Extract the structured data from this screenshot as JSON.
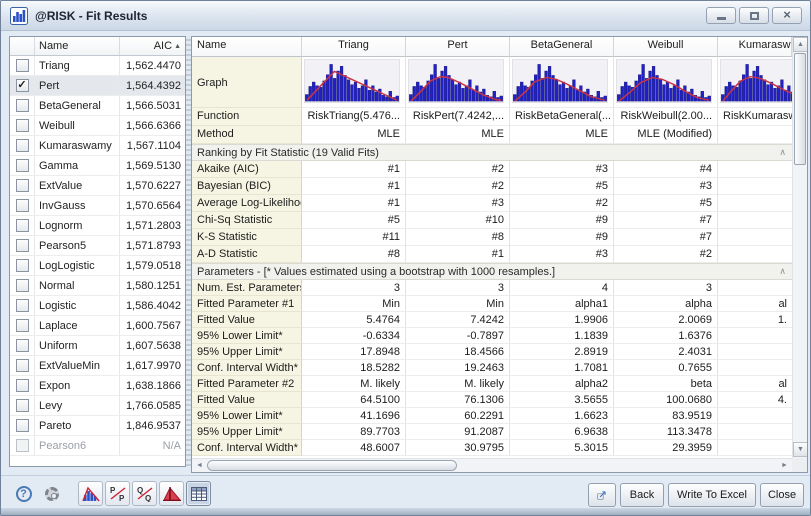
{
  "window": {
    "title": "@RISK - Fit Results"
  },
  "left_panel": {
    "headers": {
      "name": "Name",
      "aic": "AIC",
      "sort_arrow": "▲"
    },
    "rows": [
      {
        "name": "Triang",
        "aic": "1,562.4470",
        "checked": false,
        "selected": false,
        "disabled": false
      },
      {
        "name": "Pert",
        "aic": "1,564.4392",
        "checked": true,
        "selected": true,
        "disabled": false
      },
      {
        "name": "BetaGeneral",
        "aic": "1,566.5031",
        "checked": false,
        "selected": false,
        "disabled": false
      },
      {
        "name": "Weibull",
        "aic": "1,566.6366",
        "checked": false,
        "selected": false,
        "disabled": false
      },
      {
        "name": "Kumaraswamy",
        "aic": "1,567.1104",
        "checked": false,
        "selected": false,
        "disabled": false
      },
      {
        "name": "Gamma",
        "aic": "1,569.5130",
        "checked": false,
        "selected": false,
        "disabled": false
      },
      {
        "name": "ExtValue",
        "aic": "1,570.6227",
        "checked": false,
        "selected": false,
        "disabled": false
      },
      {
        "name": "InvGauss",
        "aic": "1,570.6564",
        "checked": false,
        "selected": false,
        "disabled": false
      },
      {
        "name": "Lognorm",
        "aic": "1,571.2803",
        "checked": false,
        "selected": false,
        "disabled": false
      },
      {
        "name": "Pearson5",
        "aic": "1,571.8793",
        "checked": false,
        "selected": false,
        "disabled": false
      },
      {
        "name": "LogLogistic",
        "aic": "1,579.0518",
        "checked": false,
        "selected": false,
        "disabled": false
      },
      {
        "name": "Normal",
        "aic": "1,580.1251",
        "checked": false,
        "selected": false,
        "disabled": false
      },
      {
        "name": "Logistic",
        "aic": "1,586.4042",
        "checked": false,
        "selected": false,
        "disabled": false
      },
      {
        "name": "Laplace",
        "aic": "1,600.7567",
        "checked": false,
        "selected": false,
        "disabled": false
      },
      {
        "name": "Uniform",
        "aic": "1,607.5638",
        "checked": false,
        "selected": false,
        "disabled": false
      },
      {
        "name": "ExtValueMin",
        "aic": "1,617.9970",
        "checked": false,
        "selected": false,
        "disabled": false
      },
      {
        "name": "Expon",
        "aic": "1,638.1866",
        "checked": false,
        "selected": false,
        "disabled": false
      },
      {
        "name": "Levy",
        "aic": "1,766.0585",
        "checked": false,
        "selected": false,
        "disabled": false
      },
      {
        "name": "Pareto",
        "aic": "1,846.9537",
        "checked": false,
        "selected": false,
        "disabled": false
      },
      {
        "name": "Pearson6",
        "aic": "N/A",
        "checked": false,
        "selected": false,
        "disabled": true
      }
    ]
  },
  "right_panel": {
    "name_header": "Name",
    "columns": [
      "Triang",
      "Pert",
      "BetaGeneral",
      "Weibull",
      "Kumaraswamy"
    ],
    "graph_label": "Graph",
    "function_label": "Function",
    "functions": [
      "RiskTriang(5.476...",
      "RiskPert(7.4242,...",
      "RiskBetaGeneral(...",
      "RiskWeibull(2.00...",
      "RiskKumarasw"
    ],
    "method_label": "Method",
    "methods": [
      "MLE",
      "MLE",
      "MLE",
      "MLE (Modified)",
      ""
    ],
    "ranking_section_title": "Ranking by Fit Statistic (19 Valid Fits)",
    "ranking_rows": [
      {
        "label": "Akaike (AIC)",
        "values": [
          "#1",
          "#2",
          "#3",
          "#4",
          ""
        ]
      },
      {
        "label": "Bayesian (BIC)",
        "values": [
          "#1",
          "#2",
          "#5",
          "#3",
          ""
        ]
      },
      {
        "label": "Average Log-Likelihood",
        "values": [
          "#1",
          "#3",
          "#2",
          "#5",
          ""
        ]
      },
      {
        "label": "Chi-Sq Statistic",
        "values": [
          "#5",
          "#10",
          "#9",
          "#7",
          ""
        ]
      },
      {
        "label": "K-S Statistic",
        "values": [
          "#11",
          "#8",
          "#9",
          "#7",
          ""
        ]
      },
      {
        "label": "A-D Statistic",
        "values": [
          "#8",
          "#1",
          "#3",
          "#2",
          ""
        ]
      }
    ],
    "params_section_title": "Parameters - [* Values estimated using a bootstrap with 1000 resamples.]",
    "param_rows": [
      {
        "label": "Num. Est. Parameters",
        "values": [
          "3",
          "3",
          "4",
          "3",
          ""
        ]
      },
      {
        "label": "Fitted Parameter #1",
        "values": [
          "Min",
          "Min",
          "alpha1",
          "alpha",
          "al"
        ]
      },
      {
        "label": "Fitted Value",
        "values": [
          "5.4764",
          "7.4242",
          "1.9906",
          "2.0069",
          "1."
        ]
      },
      {
        "label": "95% Lower Limit*",
        "values": [
          "-0.6334",
          "-0.7897",
          "1.1839",
          "1.6376",
          ""
        ]
      },
      {
        "label": "95% Upper Limit*",
        "values": [
          "17.8948",
          "18.4566",
          "2.8919",
          "2.4031",
          ""
        ]
      },
      {
        "label": "Conf. Interval Width*",
        "values": [
          "18.5282",
          "19.2463",
          "1.7081",
          "0.7655",
          ""
        ]
      },
      {
        "label": "Fitted Parameter #2",
        "values": [
          "M. likely",
          "M. likely",
          "alpha2",
          "beta",
          "al"
        ]
      },
      {
        "label": "Fitted Value",
        "values": [
          "64.5100",
          "76.1306",
          "3.5655",
          "100.0680",
          "4."
        ]
      },
      {
        "label": "95% Lower Limit*",
        "values": [
          "41.1696",
          "60.2291",
          "1.6623",
          "83.9519",
          ""
        ]
      },
      {
        "label": "95% Upper Limit*",
        "values": [
          "89.7703",
          "91.2087",
          "6.9638",
          "113.3478",
          ""
        ]
      },
      {
        "label": "Conf. Interval Width*",
        "values": [
          "48.6007",
          "30.9795",
          "5.3015",
          "29.3959",
          ""
        ]
      }
    ]
  },
  "graph_thumbnails": {
    "type": "histogram-with-fit-curve",
    "bar_color": "#2121c4",
    "curve_color": "#cc3344",
    "bars": [
      0.18,
      0.4,
      0.52,
      0.42,
      0.38,
      0.55,
      0.72,
      1.0,
      0.62,
      0.82,
      0.95,
      0.7,
      0.58,
      0.45,
      0.52,
      0.35,
      0.42,
      0.58,
      0.3,
      0.42,
      0.25,
      0.33,
      0.16,
      0.12,
      0.27,
      0.1,
      0.14
    ],
    "curves": {
      "Triang": [
        [
          2,
          46
        ],
        [
          30,
          13
        ],
        [
          94,
          46
        ]
      ],
      "Pert": [
        [
          2,
          47
        ],
        [
          12,
          36
        ],
        [
          22,
          24
        ],
        [
          32,
          19
        ],
        [
          40,
          20
        ],
        [
          52,
          26
        ],
        [
          64,
          33
        ],
        [
          76,
          40
        ],
        [
          88,
          45
        ],
        [
          94,
          46
        ]
      ],
      "BetaGeneral": [
        [
          2,
          47
        ],
        [
          12,
          37
        ],
        [
          22,
          25
        ],
        [
          34,
          20
        ],
        [
          44,
          22
        ],
        [
          56,
          28
        ],
        [
          68,
          35
        ],
        [
          80,
          42
        ],
        [
          94,
          46
        ]
      ],
      "Weibull": [
        [
          2,
          47
        ],
        [
          12,
          38
        ],
        [
          24,
          26
        ],
        [
          36,
          20
        ],
        [
          46,
          22
        ],
        [
          58,
          28
        ],
        [
          70,
          36
        ],
        [
          82,
          43
        ],
        [
          94,
          46
        ]
      ],
      "Kumaraswamy": [
        [
          2,
          47
        ],
        [
          10,
          36
        ],
        [
          20,
          24
        ],
        [
          30,
          19
        ],
        [
          40,
          21
        ],
        [
          52,
          27
        ],
        [
          64,
          34
        ],
        [
          78,
          41
        ],
        [
          94,
          46
        ]
      ]
    }
  },
  "scrollbars": {
    "up": "▲",
    "down": "▼",
    "left": "◄",
    "right": "►"
  },
  "section_chevron": "∧",
  "toolbar": {
    "icons": [
      "help",
      "settings",
      "fit-comparison-graph",
      "pp-plot",
      "qq-plot",
      "fit-ranking",
      "summary-grid"
    ],
    "active_icon": "summary-grid"
  },
  "footer": {
    "back_label": "Back",
    "write_label": "Write To Excel",
    "close_label": "Close"
  }
}
